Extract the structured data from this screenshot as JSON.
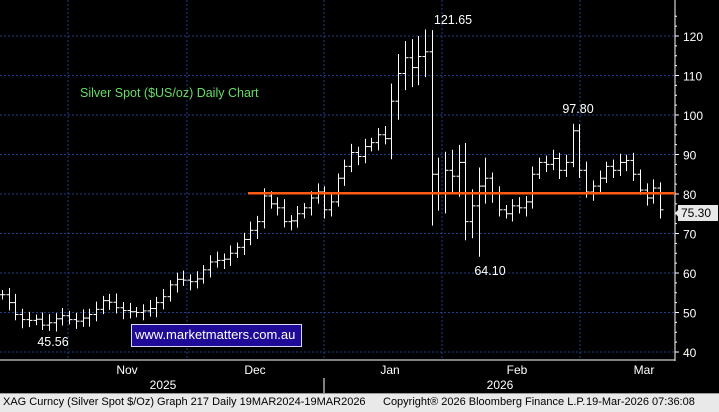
{
  "chart_data": {
    "type": "ohlc",
    "title": "Silver Spot ($US/oz) Daily Chart",
    "y_ticks": [
      40,
      50,
      60,
      70,
      80,
      90,
      100,
      110,
      120
    ],
    "ylim": [
      38,
      128
    ],
    "y_tick_labels": [
      "40",
      "50",
      "60",
      "70",
      "80",
      "90",
      "100",
      "110",
      "120"
    ],
    "month_labels": [
      "Nov",
      "Dec",
      "Jan",
      "Feb",
      "Mar"
    ],
    "year_labels": [
      "2025",
      "2026"
    ],
    "grid": true,
    "price_series": [
      54.5,
      52.5,
      49.5,
      48.2,
      48.0,
      48.3,
      46.8,
      47.4,
      48.4,
      49.2,
      48.2,
      47.8,
      48.6,
      49.5,
      50.8,
      53.0,
      52.6,
      51.2,
      50.5,
      50.2,
      50.0,
      50.4,
      51.0,
      52.5,
      54.0,
      57.0,
      58.4,
      58.2,
      57.8,
      58.5,
      60.8,
      62.8,
      63.2,
      63.5,
      65.0,
      66.5,
      68.5,
      70.8,
      73.0,
      79.5,
      77.5,
      76.5,
      73.0,
      73.2,
      75.0,
      76.5,
      79.0,
      80.5,
      76.0,
      78.0,
      84.0,
      87.0,
      90.5,
      89.5,
      92.0,
      93.0,
      95.0,
      94.0,
      103.5,
      110.5,
      114.5,
      112.0,
      114.8,
      116.0,
      85.0,
      80.0,
      86.0,
      84.5,
      88.0,
      73.0,
      77.0,
      82.0,
      84.0,
      80.0,
      76.0,
      75.0,
      77.0,
      76.5,
      78.0,
      85.0,
      88.0,
      87.5,
      89.0,
      86.0,
      88.0,
      96.0,
      86.0,
      80.5,
      82.0,
      84.0,
      87.0,
      86.0,
      88.0,
      88.5,
      85.0,
      81.0,
      79.0,
      81.5,
      76.0
    ],
    "annotations": [
      {
        "text": "121.65",
        "value": 121.65
      },
      {
        "text": "97.80",
        "value": 97.8
      },
      {
        "text": "64.10",
        "value": 64.1
      },
      {
        "text": "45.56",
        "value": 45.56
      }
    ],
    "horizontal_line": {
      "value": 80.2,
      "color": "#ff5a14"
    },
    "last_price": "75.30"
  },
  "watermark": "www.marketmatters.com.au",
  "footer": {
    "left": "XAG Curncy (Silver Spot  $/Oz) Graph 217 Daily 19MAR2024-19MAR2026",
    "mid": "Copyright® 2026 Bloomberg Finance L.P.",
    "right": "19-Mar-2026 07:36:08"
  },
  "colors": {
    "background": "#000000",
    "grid": "#1f3f8a",
    "bars": "#ffffff",
    "title": "#66dd66",
    "annotation": "#ffffff",
    "watermark_bg": "#1e0a96"
  }
}
